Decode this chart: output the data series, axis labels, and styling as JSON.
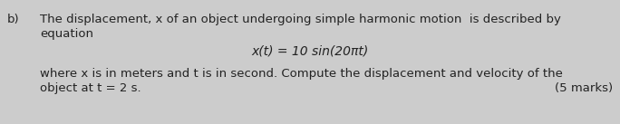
{
  "bg_color": "#cccccc",
  "label_b": "b)",
  "line1": "The displacement, x of an object undergoing simple harmonic motion  is described by",
  "line2": "equation",
  "equation": "x(t) = 10 sin(20πt)",
  "line3": "where x is in meters and t is in second. Compute the displacement and velocity of the",
  "line4": "object at t = 2 s.",
  "marks": "(5 marks)",
  "font_size_body": 9.5,
  "font_size_eq": 10,
  "font_size_marks": 9.5,
  "text_color": "#222222"
}
